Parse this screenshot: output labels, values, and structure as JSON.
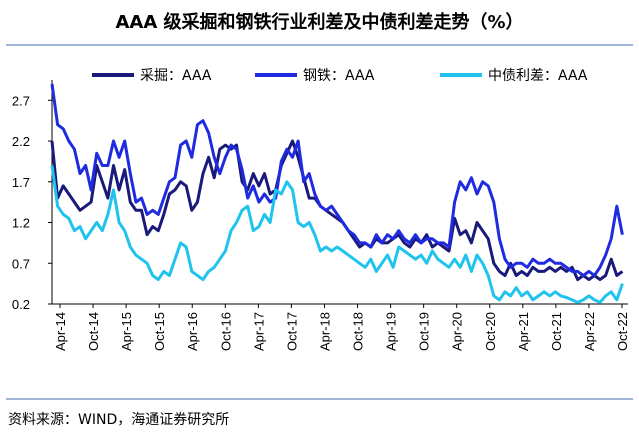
{
  "title": "AAA 级采掘和钢铁行业利差及中债利差走势（%）",
  "source": "资料来源：WIND，海通证券研究所",
  "chart_data": {
    "type": "line",
    "title": "AAA 级采掘和钢铁行业利差及中债利差走势（%）",
    "xlabel": "",
    "ylabel": "",
    "ylim": [
      0.2,
      2.9
    ],
    "yticks": [
      "2.7",
      "2.2",
      "1.7",
      "1.2",
      "0.7",
      "0.2"
    ],
    "ytick_values": [
      2.7,
      2.2,
      1.7,
      1.2,
      0.7,
      0.2
    ],
    "x_ticks": [
      "Apr-14",
      "Oct-14",
      "Apr-15",
      "Oct-15",
      "Apr-16",
      "Oct-16",
      "Apr-17",
      "Oct-17",
      "Apr-18",
      "Oct-18",
      "Apr-19",
      "Oct-19",
      "Apr-20",
      "Oct-20",
      "Apr-21",
      "Oct-21",
      "Apr-22",
      "Oct-22"
    ],
    "x_range": [
      0,
      103
    ],
    "grid": false,
    "legend_position": "top",
    "series": [
      {
        "name": "采掘：AAA",
        "color": "#1a1a7a",
        "points": [
          [
            0,
            2.2
          ],
          [
            1,
            1.5
          ],
          [
            2,
            1.65
          ],
          [
            3,
            1.55
          ],
          [
            4,
            1.45
          ],
          [
            5,
            1.35
          ],
          [
            6,
            1.4
          ],
          [
            7,
            1.45
          ],
          [
            8,
            1.9
          ],
          [
            9,
            1.7
          ],
          [
            10,
            1.5
          ],
          [
            11,
            1.9
          ],
          [
            12,
            1.6
          ],
          [
            13,
            1.85
          ],
          [
            14,
            1.45
          ],
          [
            15,
            1.35
          ],
          [
            16,
            1.35
          ],
          [
            17,
            1.05
          ],
          [
            18,
            1.15
          ],
          [
            19,
            1.1
          ],
          [
            20,
            1.3
          ],
          [
            21,
            1.55
          ],
          [
            22,
            1.6
          ],
          [
            23,
            1.7
          ],
          [
            24,
            1.65
          ],
          [
            25,
            1.35
          ],
          [
            26,
            1.45
          ],
          [
            27,
            1.8
          ],
          [
            28,
            2.0
          ],
          [
            29,
            1.75
          ],
          [
            30,
            2.1
          ],
          [
            31,
            2.15
          ],
          [
            32,
            2.1
          ],
          [
            33,
            2.15
          ],
          [
            34,
            1.7
          ],
          [
            35,
            1.6
          ],
          [
            36,
            1.8
          ],
          [
            37,
            1.65
          ],
          [
            38,
            1.8
          ],
          [
            39,
            1.55
          ],
          [
            40,
            1.6
          ],
          [
            41,
            1.9
          ],
          [
            42,
            2.05
          ],
          [
            43,
            2.2
          ],
          [
            44,
            2.0
          ],
          [
            45,
            1.75
          ],
          [
            46,
            1.5
          ],
          [
            47,
            1.5
          ],
          [
            48,
            1.4
          ],
          [
            49,
            1.35
          ],
          [
            50,
            1.3
          ],
          [
            51,
            1.25
          ],
          [
            52,
            1.2
          ],
          [
            53,
            1.1
          ],
          [
            54,
            1.0
          ],
          [
            55,
            0.9
          ],
          [
            56,
            0.95
          ],
          [
            57,
            0.9
          ],
          [
            58,
            1.0
          ],
          [
            59,
            0.95
          ],
          [
            60,
            0.95
          ],
          [
            61,
            1.0
          ],
          [
            62,
            1.05
          ],
          [
            63,
            0.95
          ],
          [
            64,
            0.9
          ],
          [
            65,
            1.0
          ],
          [
            66,
            0.95
          ],
          [
            67,
            1.05
          ],
          [
            68,
            0.9
          ],
          [
            69,
            0.95
          ],
          [
            70,
            0.9
          ],
          [
            71,
            0.85
          ],
          [
            72,
            1.25
          ],
          [
            73,
            1.05
          ],
          [
            74,
            1.1
          ],
          [
            75,
            0.95
          ],
          [
            76,
            1.2
          ],
          [
            77,
            1.1
          ],
          [
            78,
            1.0
          ],
          [
            79,
            0.7
          ],
          [
            80,
            0.6
          ],
          [
            81,
            0.55
          ],
          [
            82,
            0.7
          ],
          [
            83,
            0.55
          ],
          [
            84,
            0.6
          ],
          [
            85,
            0.55
          ],
          [
            86,
            0.65
          ],
          [
            87,
            0.6
          ],
          [
            88,
            0.6
          ],
          [
            89,
            0.65
          ],
          [
            90,
            0.6
          ],
          [
            91,
            0.65
          ],
          [
            92,
            0.6
          ],
          [
            93,
            0.65
          ],
          [
            94,
            0.5
          ],
          [
            95,
            0.55
          ],
          [
            96,
            0.5
          ],
          [
            97,
            0.55
          ],
          [
            98,
            0.5
          ],
          [
            99,
            0.55
          ],
          [
            100,
            0.75
          ],
          [
            101,
            0.55
          ],
          [
            102,
            0.6
          ]
        ]
      },
      {
        "name": "钢铁：AAA",
        "color": "#1f2be0",
        "points": [
          [
            0,
            2.9
          ],
          [
            1,
            2.4
          ],
          [
            2,
            2.35
          ],
          [
            3,
            2.2
          ],
          [
            4,
            2.1
          ],
          [
            5,
            1.8
          ],
          [
            6,
            1.9
          ],
          [
            7,
            1.6
          ],
          [
            8,
            2.05
          ],
          [
            9,
            1.9
          ],
          [
            10,
            1.9
          ],
          [
            11,
            2.2
          ],
          [
            12,
            2.0
          ],
          [
            13,
            2.2
          ],
          [
            14,
            1.8
          ],
          [
            15,
            1.45
          ],
          [
            16,
            1.5
          ],
          [
            17,
            1.3
          ],
          [
            18,
            1.35
          ],
          [
            19,
            1.3
          ],
          [
            20,
            1.5
          ],
          [
            21,
            1.7
          ],
          [
            22,
            1.75
          ],
          [
            23,
            2.15
          ],
          [
            24,
            2.2
          ],
          [
            25,
            2.0
          ],
          [
            26,
            2.4
          ],
          [
            27,
            2.45
          ],
          [
            28,
            2.3
          ],
          [
            29,
            2.0
          ],
          [
            30,
            1.8
          ],
          [
            31,
            2.0
          ],
          [
            32,
            2.15
          ],
          [
            33,
            2.1
          ],
          [
            34,
            1.85
          ],
          [
            35,
            1.5
          ],
          [
            36,
            1.65
          ],
          [
            37,
            1.45
          ],
          [
            38,
            1.55
          ],
          [
            39,
            1.45
          ],
          [
            40,
            1.5
          ],
          [
            41,
            1.95
          ],
          [
            42,
            2.1
          ],
          [
            43,
            2.0
          ],
          [
            44,
            2.2
          ],
          [
            45,
            1.7
          ],
          [
            46,
            1.8
          ],
          [
            47,
            1.55
          ],
          [
            48,
            1.4
          ],
          [
            49,
            1.35
          ],
          [
            50,
            1.4
          ],
          [
            51,
            1.3
          ],
          [
            52,
            1.2
          ],
          [
            53,
            1.1
          ],
          [
            54,
            1.05
          ],
          [
            55,
            0.95
          ],
          [
            56,
            0.95
          ],
          [
            57,
            0.9
          ],
          [
            58,
            1.05
          ],
          [
            59,
            0.95
          ],
          [
            60,
            1.05
          ],
          [
            61,
            1.0
          ],
          [
            62,
            1.1
          ],
          [
            63,
            1.0
          ],
          [
            64,
            0.95
          ],
          [
            65,
            1.05
          ],
          [
            66,
            0.95
          ],
          [
            67,
            1.0
          ],
          [
            68,
            1.0
          ],
          [
            69,
            0.95
          ],
          [
            70,
            0.95
          ],
          [
            71,
            0.9
          ],
          [
            72,
            1.45
          ],
          [
            73,
            1.7
          ],
          [
            74,
            1.6
          ],
          [
            75,
            1.75
          ],
          [
            76,
            1.55
          ],
          [
            77,
            1.7
          ],
          [
            78,
            1.65
          ],
          [
            79,
            1.45
          ],
          [
            80,
            1.0
          ],
          [
            81,
            0.75
          ],
          [
            82,
            0.65
          ],
          [
            83,
            0.7
          ],
          [
            84,
            0.7
          ],
          [
            85,
            0.65
          ],
          [
            86,
            0.75
          ],
          [
            87,
            0.7
          ],
          [
            88,
            0.7
          ],
          [
            89,
            0.75
          ],
          [
            90,
            0.7
          ],
          [
            91,
            0.7
          ],
          [
            92,
            0.65
          ],
          [
            93,
            0.6
          ],
          [
            94,
            0.6
          ],
          [
            95,
            0.55
          ],
          [
            96,
            0.6
          ],
          [
            97,
            0.55
          ],
          [
            98,
            0.65
          ],
          [
            99,
            0.8
          ],
          [
            100,
            1.0
          ],
          [
            101,
            1.4
          ],
          [
            102,
            1.05
          ]
        ]
      },
      {
        "name": "中债利差：AAA",
        "color": "#1fc3ee",
        "points": [
          [
            0,
            1.9
          ],
          [
            1,
            1.4
          ],
          [
            2,
            1.3
          ],
          [
            3,
            1.25
          ],
          [
            4,
            1.1
          ],
          [
            5,
            1.15
          ],
          [
            6,
            1.0
          ],
          [
            7,
            1.1
          ],
          [
            8,
            1.2
          ],
          [
            9,
            1.1
          ],
          [
            10,
            1.3
          ],
          [
            11,
            1.6
          ],
          [
            12,
            1.2
          ],
          [
            13,
            1.1
          ],
          [
            14,
            0.9
          ],
          [
            15,
            0.8
          ],
          [
            16,
            0.75
          ],
          [
            17,
            0.7
          ],
          [
            18,
            0.55
          ],
          [
            19,
            0.5
          ],
          [
            20,
            0.6
          ],
          [
            21,
            0.55
          ],
          [
            22,
            0.75
          ],
          [
            23,
            0.95
          ],
          [
            24,
            0.9
          ],
          [
            25,
            0.6
          ],
          [
            26,
            0.55
          ],
          [
            27,
            0.5
          ],
          [
            28,
            0.6
          ],
          [
            29,
            0.65
          ],
          [
            30,
            0.75
          ],
          [
            31,
            0.85
          ],
          [
            32,
            1.1
          ],
          [
            33,
            1.2
          ],
          [
            34,
            1.35
          ],
          [
            35,
            1.4
          ],
          [
            36,
            1.1
          ],
          [
            37,
            1.15
          ],
          [
            38,
            1.3
          ],
          [
            39,
            1.2
          ],
          [
            40,
            1.6
          ],
          [
            41,
            1.55
          ],
          [
            42,
            1.7
          ],
          [
            43,
            1.6
          ],
          [
            44,
            1.2
          ],
          [
            45,
            1.15
          ],
          [
            46,
            1.2
          ],
          [
            47,
            1.05
          ],
          [
            48,
            0.85
          ],
          [
            49,
            0.9
          ],
          [
            50,
            0.85
          ],
          [
            51,
            0.9
          ],
          [
            52,
            0.85
          ],
          [
            53,
            0.8
          ],
          [
            54,
            0.75
          ],
          [
            55,
            0.7
          ],
          [
            56,
            0.65
          ],
          [
            57,
            0.75
          ],
          [
            58,
            0.6
          ],
          [
            59,
            0.7
          ],
          [
            60,
            0.8
          ],
          [
            61,
            0.65
          ],
          [
            62,
            0.9
          ],
          [
            63,
            0.85
          ],
          [
            64,
            0.8
          ],
          [
            65,
            0.75
          ],
          [
            66,
            0.8
          ],
          [
            67,
            0.7
          ],
          [
            68,
            0.85
          ],
          [
            69,
            0.75
          ],
          [
            70,
            0.7
          ],
          [
            71,
            0.65
          ],
          [
            72,
            0.75
          ],
          [
            73,
            0.65
          ],
          [
            74,
            0.8
          ],
          [
            75,
            0.6
          ],
          [
            76,
            0.8
          ],
          [
            77,
            0.7
          ],
          [
            78,
            0.55
          ],
          [
            79,
            0.3
          ],
          [
            80,
            0.25
          ],
          [
            81,
            0.35
          ],
          [
            82,
            0.3
          ],
          [
            83,
            0.4
          ],
          [
            84,
            0.3
          ],
          [
            85,
            0.35
          ],
          [
            86,
            0.25
          ],
          [
            87,
            0.3
          ],
          [
            88,
            0.35
          ],
          [
            89,
            0.3
          ],
          [
            90,
            0.35
          ],
          [
            91,
            0.3
          ],
          [
            92,
            0.28
          ],
          [
            93,
            0.25
          ],
          [
            94,
            0.22
          ],
          [
            95,
            0.25
          ],
          [
            96,
            0.3
          ],
          [
            97,
            0.25
          ],
          [
            98,
            0.22
          ],
          [
            99,
            0.3
          ],
          [
            100,
            0.35
          ],
          [
            101,
            0.25
          ],
          [
            102,
            0.45
          ]
        ]
      }
    ]
  }
}
